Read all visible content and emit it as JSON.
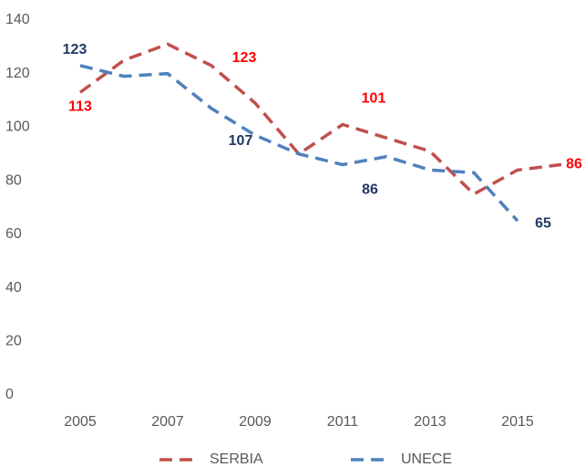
{
  "chart_data": {
    "type": "line",
    "x": [
      2005,
      2006,
      2007,
      2008,
      2009,
      2010,
      2011,
      2012,
      2013,
      2014,
      2015,
      2016
    ],
    "xlim": [
      2005,
      2016
    ],
    "xticks": [
      2005,
      2007,
      2009,
      2011,
      2013,
      2015
    ],
    "ylim": [
      0,
      140
    ],
    "yticks": [
      0,
      20,
      40,
      60,
      80,
      100,
      120,
      140
    ],
    "grid": false,
    "legend": "bottom",
    "series": [
      {
        "name": "SERBIA",
        "color": "#c0504d",
        "label_color": "#ff0000",
        "values": [
          113,
          125,
          131,
          123,
          109,
          90,
          101,
          96,
          91,
          75,
          84,
          86
        ],
        "label_indices": [
          0,
          3,
          6,
          11
        ]
      },
      {
        "name": "UNECE",
        "color": "#4f81bd",
        "label_color": "#1f3864",
        "values": [
          123,
          119,
          120,
          107,
          97,
          90,
          86,
          89,
          84,
          83,
          65,
          null
        ],
        "label_indices": [
          0,
          3,
          6,
          10
        ]
      }
    ]
  }
}
